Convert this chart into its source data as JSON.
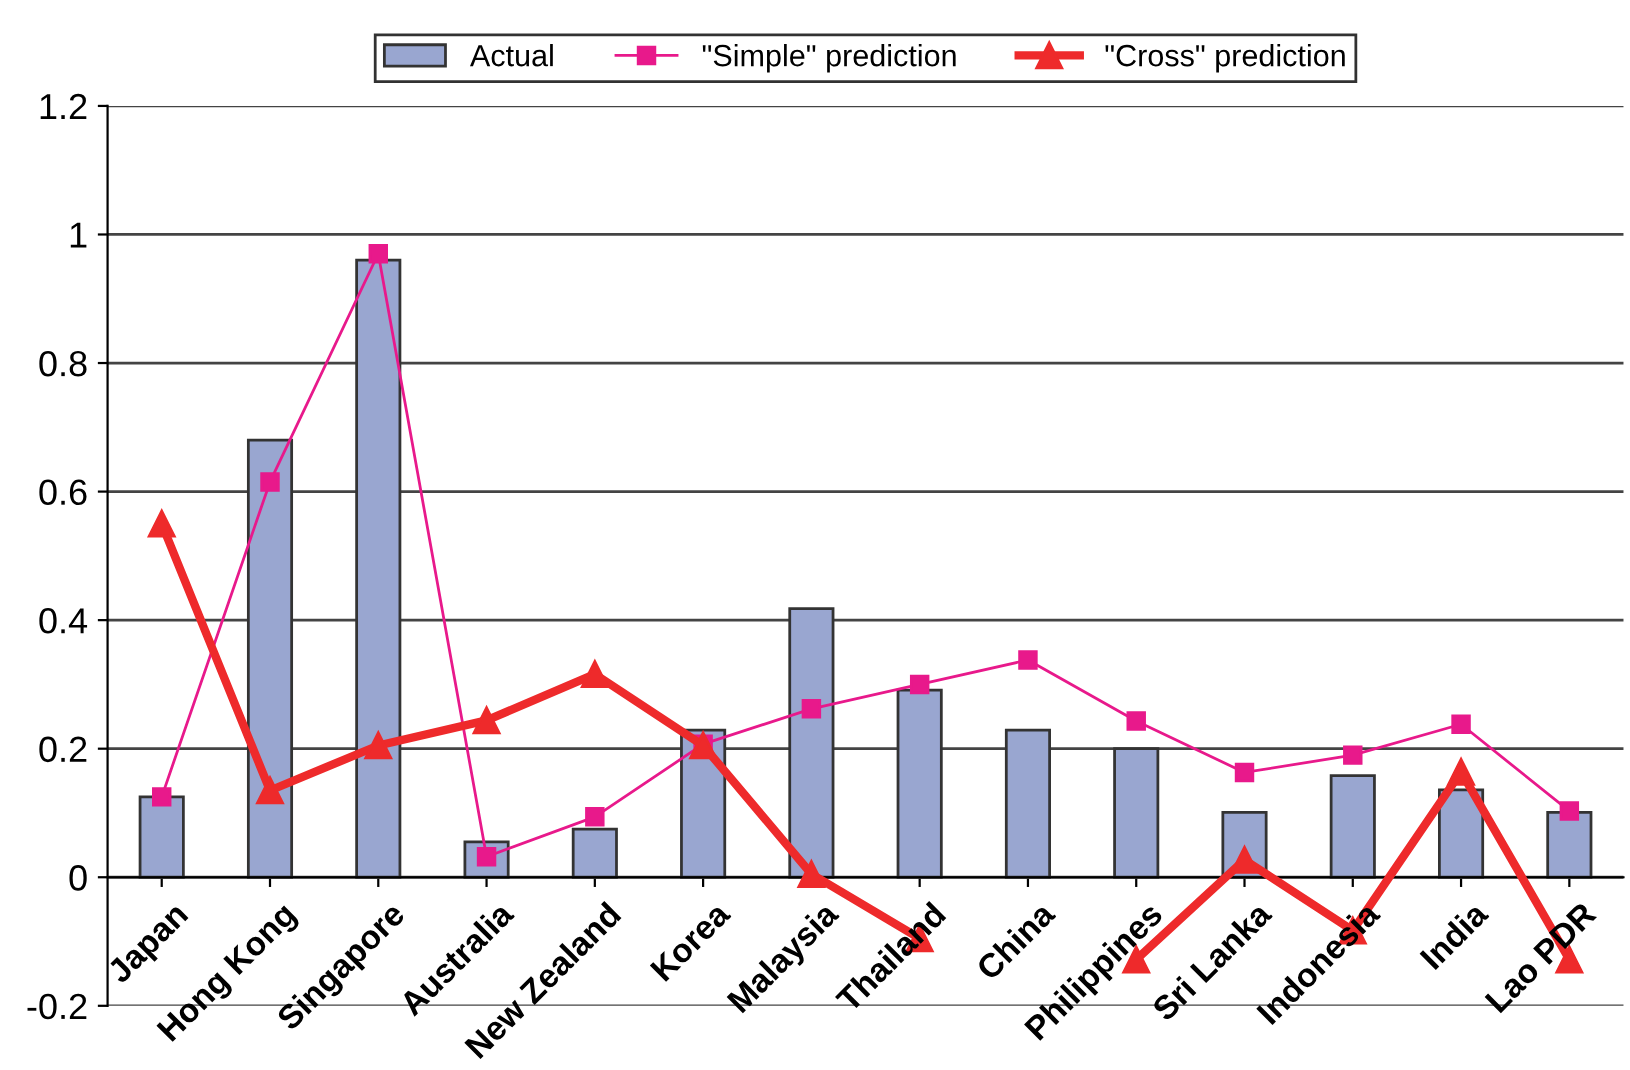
{
  "chart_data": {
    "type": "bar",
    "categories": [
      "Japan",
      "Hong Kong",
      "Singapore",
      "Australia",
      "New Zealand",
      "Korea",
      "Malaysia",
      "Thailand",
      "China",
      "Philippines",
      "Sri Lanka",
      "Indonesia",
      "India",
      "Lao PDR"
    ],
    "series": [
      {
        "name": "Actual",
        "color": "#99a6d0",
        "values": [
          0.125,
          0.68,
          0.96,
          0.055,
          0.075,
          0.229,
          0.418,
          0.291,
          0.229,
          0.2,
          0.101,
          0.158,
          0.136,
          0.101
        ]
      },
      {
        "name": "\"Simple\" prediction",
        "type": "line",
        "color": "#e8198b",
        "marker": "square",
        "values": [
          0.125,
          0.615,
          0.97,
          0.032,
          0.094,
          0.207,
          0.262,
          0.3,
          0.338,
          0.243,
          0.163,
          0.19,
          0.238,
          0.103
        ]
      },
      {
        "name": "\"Cross\" prediction",
        "type": "line",
        "color": "#ee2a2b",
        "marker": "triangle",
        "values": [
          0.55,
          0.135,
          0.205,
          0.244,
          0.316,
          0.205,
          0.005,
          -0.095,
          null,
          -0.128,
          0.027,
          -0.083,
          0.164,
          -0.128
        ]
      }
    ],
    "ylim": [
      -0.2,
      1.2
    ],
    "yticks": [
      -0.2,
      0,
      0.2,
      0.4,
      0.6,
      0.8,
      1,
      1.2
    ],
    "grid": "y",
    "legend": "top"
  }
}
